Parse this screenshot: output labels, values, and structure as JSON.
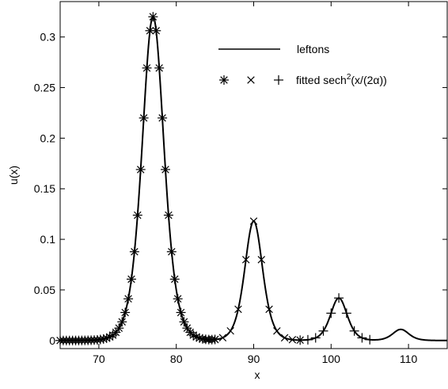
{
  "chart_data": {
    "type": "line",
    "xlabel": "x",
    "ylabel": "u(x)",
    "xlim": [
      65,
      115
    ],
    "ylim": [
      -0.008,
      0.335
    ],
    "xticks": [
      70,
      80,
      90,
      100,
      110
    ],
    "yticks": [
      0,
      0.05,
      0.1,
      0.15,
      0.2,
      0.25,
      0.3
    ],
    "ytick_labels": [
      "0",
      "0.05",
      "0.1",
      "0.15",
      "0.2",
      "0.25",
      "0.3"
    ],
    "grid": false,
    "legend_position": "top-right",
    "series": [
      {
        "name": "leftons",
        "style": "solid-line",
        "color": "#000000",
        "peaks": [
          {
            "center": 77.0,
            "amplitude": 0.32,
            "width": 1.9
          },
          {
            "center": 90.0,
            "amplitude": 0.118,
            "width": 1.55
          },
          {
            "center": 101.0,
            "amplitude": 0.042,
            "width": 1.45
          },
          {
            "center": 109.0,
            "amplitude": 0.011,
            "width": 1.4
          }
        ]
      },
      {
        "name": "fitted",
        "style": "markers",
        "color": "#000000",
        "groups": [
          {
            "marker": "asterisk",
            "peak_index": 0,
            "x_range": [
              65,
              85
            ],
            "step": 0.4
          },
          {
            "marker": "x",
            "peak_index": 1,
            "x_range": [
              84,
              96
            ],
            "step": 1.0
          },
          {
            "marker": "plus",
            "peak_index": 2,
            "x_range": [
              96,
              105
            ],
            "step": 1.0
          }
        ]
      }
    ]
  },
  "legend": {
    "line_label": "leftons",
    "marker_label_prefix": "fitted sech",
    "marker_label_sup": "2",
    "marker_label_suffix": "(x/(2α))",
    "marker_symbols": [
      "asterisk",
      "x",
      "plus"
    ]
  }
}
